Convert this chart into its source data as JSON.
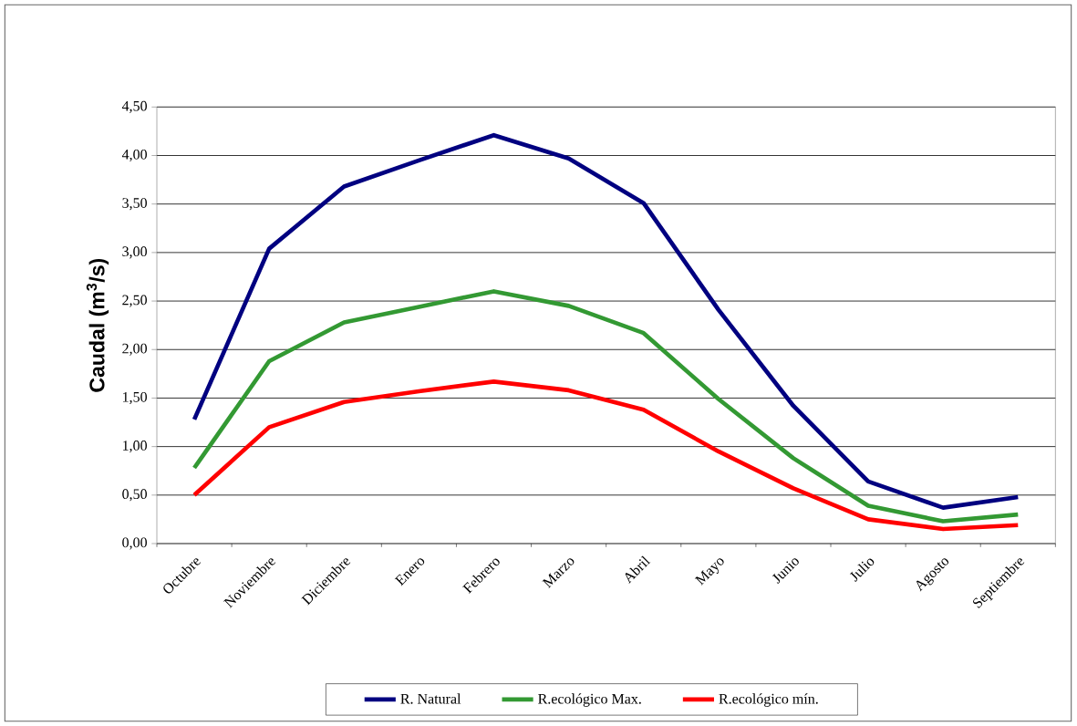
{
  "chart_data": {
    "type": "line",
    "ylabel": "Caudal (m$^{3}$/s)",
    "categories": [
      "Octubre",
      "Noviembre",
      "Diciembre",
      "Enero",
      "Febrero",
      "Marzo",
      "Abril",
      "Mayo",
      "Junio",
      "Julio",
      "Agosto",
      "Septiembre"
    ],
    "series": [
      {
        "name": "R. Natural",
        "color": "#000080",
        "values": [
          1.28,
          3.04,
          3.68,
          3.95,
          4.21,
          3.97,
          3.51,
          2.41,
          1.42,
          0.64,
          0.37,
          0.48
        ]
      },
      {
        "name": "R.ecológico Max.",
        "color": "#339933",
        "values": [
          0.78,
          1.88,
          2.28,
          2.44,
          2.6,
          2.45,
          2.17,
          1.49,
          0.88,
          0.39,
          0.23,
          0.3
        ]
      },
      {
        "name": "R.ecológico mín.",
        "color": "#ff0000",
        "values": [
          0.5,
          1.2,
          1.46,
          1.57,
          1.67,
          1.58,
          1.38,
          0.95,
          0.57,
          0.25,
          0.15,
          0.19
        ]
      }
    ],
    "ylim": [
      0,
      4.5
    ],
    "yticks": [
      {
        "value": 0,
        "label": "0,00"
      },
      {
        "value": 0.5,
        "label": "0,50"
      },
      {
        "value": 1,
        "label": "1,00"
      },
      {
        "value": 1.5,
        "label": "1,50"
      },
      {
        "value": 2,
        "label": "2,00"
      },
      {
        "value": 2.5,
        "label": "2,50"
      },
      {
        "value": 3,
        "label": "3,00"
      },
      {
        "value": 3.5,
        "label": "3,50"
      },
      {
        "value": 4,
        "label": "4,00"
      },
      {
        "value": 4.5,
        "label": "4,50"
      }
    ],
    "grid": "y",
    "legend": "bottom",
    "marker": "none",
    "line_style": "solid"
  }
}
